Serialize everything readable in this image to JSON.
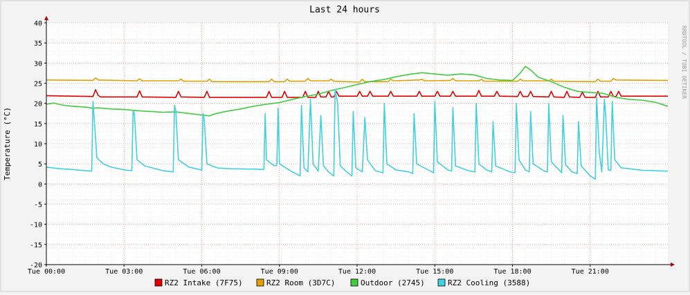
{
  "chart_data": {
    "type": "line",
    "title": "Last 24 hours",
    "ylabel": "Temperature (°C)",
    "watermark": "RRDTOOL / TOBI OETIKER",
    "ylim": [
      -20,
      40
    ],
    "y_ticks": [
      40,
      35,
      30,
      25,
      20,
      15,
      10,
      5,
      0,
      -5,
      -10,
      -15,
      -20
    ],
    "xlim_hours": [
      0,
      24
    ],
    "x_ticks": [
      {
        "h": 0,
        "label": "Tue 00:00"
      },
      {
        "h": 3,
        "label": "Tue 03:00"
      },
      {
        "h": 6,
        "label": "Tue 06:00"
      },
      {
        "h": 9,
        "label": "Tue 09:00"
      },
      {
        "h": 12,
        "label": "Tue 12:00"
      },
      {
        "h": 15,
        "label": "Tue 15:00"
      },
      {
        "h": 18,
        "label": "Tue 18:00"
      },
      {
        "h": 21,
        "label": "Tue 21:00"
      }
    ],
    "grid": true,
    "legend_position": "bottom",
    "series": [
      {
        "name": "RZ2 Intake (7F75)",
        "color": "#e00000",
        "points": [
          [
            0,
            21.9
          ],
          [
            1.8,
            21.7
          ],
          [
            1.9,
            23.4
          ],
          [
            2.0,
            22.0
          ],
          [
            2.1,
            21.6
          ],
          [
            3.5,
            21.6
          ],
          [
            3.6,
            23.1
          ],
          [
            3.7,
            21.6
          ],
          [
            5.0,
            21.5
          ],
          [
            5.1,
            23.0
          ],
          [
            5.2,
            21.6
          ],
          [
            6.1,
            21.5
          ],
          [
            6.2,
            23.0
          ],
          [
            6.3,
            21.5
          ],
          [
            8.5,
            21.5
          ],
          [
            8.6,
            23.0
          ],
          [
            8.7,
            21.5
          ],
          [
            9.1,
            21.5
          ],
          [
            9.2,
            23.0
          ],
          [
            9.3,
            21.5
          ],
          [
            9.9,
            21.5
          ],
          [
            10.0,
            23.0
          ],
          [
            10.1,
            21.5
          ],
          [
            10.4,
            21.5
          ],
          [
            10.5,
            23.0
          ],
          [
            10.6,
            21.6
          ],
          [
            10.8,
            21.6
          ],
          [
            10.9,
            23.0
          ],
          [
            11.0,
            21.6
          ],
          [
            11.1,
            21.6
          ],
          [
            11.2,
            23.0
          ],
          [
            11.3,
            21.8
          ],
          [
            12.0,
            21.8
          ],
          [
            12.1,
            23.0
          ],
          [
            12.2,
            21.8
          ],
          [
            12.4,
            21.8
          ],
          [
            12.5,
            23.0
          ],
          [
            12.6,
            21.8
          ],
          [
            13.2,
            21.8
          ],
          [
            13.3,
            23.0
          ],
          [
            13.4,
            21.8
          ],
          [
            14.3,
            21.8
          ],
          [
            14.4,
            23.0
          ],
          [
            14.5,
            21.8
          ],
          [
            15.0,
            21.8
          ],
          [
            15.1,
            23.0
          ],
          [
            15.2,
            21.8
          ],
          [
            15.6,
            21.8
          ],
          [
            15.7,
            23.0
          ],
          [
            15.8,
            21.8
          ],
          [
            16.6,
            21.8
          ],
          [
            16.7,
            23.2
          ],
          [
            16.8,
            21.8
          ],
          [
            17.3,
            21.8
          ],
          [
            17.4,
            23.0
          ],
          [
            17.5,
            21.8
          ],
          [
            18.2,
            21.7
          ],
          [
            18.3,
            23.0
          ],
          [
            18.4,
            21.7
          ],
          [
            18.6,
            21.7
          ],
          [
            18.7,
            23.0
          ],
          [
            18.8,
            21.7
          ],
          [
            19.4,
            21.6
          ],
          [
            19.5,
            23.0
          ],
          [
            19.6,
            21.6
          ],
          [
            20.0,
            21.5
          ],
          [
            20.1,
            23.0
          ],
          [
            20.2,
            21.6
          ],
          [
            20.6,
            21.5
          ],
          [
            20.7,
            22.8
          ],
          [
            20.8,
            21.5
          ],
          [
            21.2,
            21.5
          ],
          [
            21.3,
            23.0
          ],
          [
            21.4,
            21.6
          ],
          [
            21.7,
            21.6
          ],
          [
            21.8,
            23.0
          ],
          [
            21.9,
            21.7
          ],
          [
            22.0,
            21.7
          ],
          [
            22.1,
            23.0
          ],
          [
            22.2,
            21.8
          ],
          [
            24.0,
            21.8
          ]
        ]
      },
      {
        "name": "RZ2 Room (3D7C)",
        "color": "#e0a000",
        "points": [
          [
            0,
            25.8
          ],
          [
            1.8,
            25.7
          ],
          [
            1.9,
            26.3
          ],
          [
            2.0,
            25.8
          ],
          [
            3.5,
            25.6
          ],
          [
            3.6,
            26.1
          ],
          [
            3.7,
            25.6
          ],
          [
            5.1,
            25.6
          ],
          [
            5.2,
            26.0
          ],
          [
            5.3,
            25.5
          ],
          [
            6.2,
            25.5
          ],
          [
            6.3,
            26.0
          ],
          [
            6.4,
            25.4
          ],
          [
            8.6,
            25.4
          ],
          [
            8.7,
            26.0
          ],
          [
            8.8,
            25.4
          ],
          [
            9.2,
            25.4
          ],
          [
            9.3,
            26.0
          ],
          [
            9.4,
            25.5
          ],
          [
            10.0,
            25.5
          ],
          [
            10.1,
            26.2
          ],
          [
            10.2,
            25.6
          ],
          [
            10.9,
            25.6
          ],
          [
            11.0,
            26.0
          ],
          [
            11.1,
            25.5
          ],
          [
            12.1,
            25.3
          ],
          [
            12.2,
            26.0
          ],
          [
            12.3,
            25.4
          ],
          [
            13.2,
            25.4
          ],
          [
            13.3,
            26.0
          ],
          [
            13.4,
            25.6
          ],
          [
            14.4,
            25.8
          ],
          [
            14.5,
            26.0
          ],
          [
            14.6,
            25.6
          ],
          [
            15.6,
            25.7
          ],
          [
            15.7,
            26.2
          ],
          [
            15.8,
            25.6
          ],
          [
            16.7,
            25.6
          ],
          [
            16.8,
            26.0
          ],
          [
            16.9,
            25.5
          ],
          [
            18.2,
            25.5
          ],
          [
            18.3,
            26.0
          ],
          [
            18.4,
            25.6
          ],
          [
            19.4,
            25.6
          ],
          [
            19.5,
            26.0
          ],
          [
            19.6,
            25.5
          ],
          [
            21.2,
            25.4
          ],
          [
            21.3,
            26.0
          ],
          [
            21.4,
            25.5
          ],
          [
            21.8,
            25.5
          ],
          [
            21.9,
            26.2
          ],
          [
            22.0,
            25.8
          ],
          [
            24.0,
            25.7
          ]
        ]
      },
      {
        "name": "Outdoor (2745)",
        "color": "#40cc40",
        "points": [
          [
            0,
            19.8
          ],
          [
            0.3,
            20.1
          ],
          [
            0.6,
            19.6
          ],
          [
            1.0,
            19.3
          ],
          [
            1.5,
            19.1
          ],
          [
            1.8,
            18.8
          ],
          [
            2.0,
            18.9
          ],
          [
            2.5,
            18.6
          ],
          [
            3.0,
            18.5
          ],
          [
            3.5,
            18.2
          ],
          [
            4.0,
            18.0
          ],
          [
            4.5,
            17.8
          ],
          [
            5.0,
            17.9
          ],
          [
            5.5,
            17.5
          ],
          [
            5.9,
            17.2
          ],
          [
            6.3,
            16.9
          ],
          [
            6.5,
            17.4
          ],
          [
            7.0,
            18.1
          ],
          [
            7.5,
            18.6
          ],
          [
            8.0,
            19.3
          ],
          [
            8.5,
            19.8
          ],
          [
            9.0,
            20.2
          ],
          [
            9.5,
            21.0
          ],
          [
            10.0,
            21.7
          ],
          [
            10.5,
            22.3
          ],
          [
            11.0,
            23.2
          ],
          [
            11.5,
            23.9
          ],
          [
            12.0,
            24.7
          ],
          [
            12.5,
            25.4
          ],
          [
            13.0,
            25.9
          ],
          [
            13.5,
            26.6
          ],
          [
            14.0,
            27.2
          ],
          [
            14.5,
            27.6
          ],
          [
            15.0,
            27.3
          ],
          [
            15.5,
            27.0
          ],
          [
            16.0,
            27.3
          ],
          [
            16.5,
            27.1
          ],
          [
            17.0,
            26.2
          ],
          [
            17.5,
            25.8
          ],
          [
            18.0,
            25.7
          ],
          [
            18.3,
            27.5
          ],
          [
            18.5,
            29.2
          ],
          [
            18.7,
            28.3
          ],
          [
            19.0,
            26.5
          ],
          [
            19.5,
            25.4
          ],
          [
            20.0,
            24.0
          ],
          [
            20.5,
            23.0
          ],
          [
            21.0,
            22.7
          ],
          [
            21.5,
            22.5
          ],
          [
            22.0,
            21.5
          ],
          [
            22.5,
            21.0
          ],
          [
            23.0,
            20.8
          ],
          [
            23.5,
            20.3
          ],
          [
            24.0,
            19.3
          ]
        ]
      },
      {
        "name": "RZ2 Cooling (3588)",
        "color": "#40d0e0",
        "points": [
          [
            0,
            4.2
          ],
          [
            0.5,
            3.8
          ],
          [
            1.0,
            3.6
          ],
          [
            1.5,
            3.3
          ],
          [
            1.75,
            3.2
          ],
          [
            1.8,
            20.5
          ],
          [
            1.85,
            16.0
          ],
          [
            1.95,
            6.5
          ],
          [
            2.2,
            5.0
          ],
          [
            2.5,
            4.2
          ],
          [
            3.0,
            3.5
          ],
          [
            3.3,
            3.3
          ],
          [
            3.35,
            18.0
          ],
          [
            3.4,
            17.5
          ],
          [
            3.5,
            6.0
          ],
          [
            3.8,
            4.5
          ],
          [
            4.5,
            3.3
          ],
          [
            4.9,
            3.0
          ],
          [
            4.95,
            19.5
          ],
          [
            5.0,
            18.0
          ],
          [
            5.1,
            6.0
          ],
          [
            5.5,
            4.2
          ],
          [
            5.9,
            3.6
          ],
          [
            6.0,
            3.4
          ],
          [
            6.05,
            17.5
          ],
          [
            6.1,
            16.0
          ],
          [
            6.2,
            5.0
          ],
          [
            6.6,
            4.0
          ],
          [
            7.0,
            3.8
          ],
          [
            8.0,
            3.7
          ],
          [
            8.4,
            3.6
          ],
          [
            8.45,
            17.5
          ],
          [
            8.5,
            6.0
          ],
          [
            8.8,
            4.5
          ],
          [
            8.9,
            4.6
          ],
          [
            8.95,
            18.8
          ],
          [
            9.0,
            5.0
          ],
          [
            9.5,
            3.0
          ],
          [
            9.8,
            2.0
          ],
          [
            9.85,
            19.5
          ],
          [
            9.95,
            4.0
          ],
          [
            10.1,
            3.0
          ],
          [
            10.2,
            21.0
          ],
          [
            10.3,
            5.0
          ],
          [
            10.5,
            3.2
          ],
          [
            10.6,
            17.0
          ],
          [
            10.7,
            4.5
          ],
          [
            10.9,
            3.0
          ],
          [
            11.1,
            2.0
          ],
          [
            11.15,
            23.5
          ],
          [
            11.25,
            20.0
          ],
          [
            11.35,
            4.5
          ],
          [
            11.6,
            3.0
          ],
          [
            11.8,
            2.0
          ],
          [
            11.85,
            18.0
          ],
          [
            11.95,
            4.0
          ],
          [
            12.2,
            3.0
          ],
          [
            12.3,
            16.5
          ],
          [
            12.4,
            6.0
          ],
          [
            12.7,
            3.3
          ],
          [
            13.0,
            2.8
          ],
          [
            13.05,
            20.0
          ],
          [
            13.15,
            5.0
          ],
          [
            13.5,
            3.5
          ],
          [
            14.0,
            3.0
          ],
          [
            14.15,
            2.6
          ],
          [
            14.2,
            17.5
          ],
          [
            14.3,
            5.0
          ],
          [
            14.8,
            3.3
          ],
          [
            14.95,
            2.8
          ],
          [
            15.0,
            20.5
          ],
          [
            15.1,
            5.5
          ],
          [
            15.5,
            3.5
          ],
          [
            15.65,
            3.2
          ],
          [
            15.7,
            19.0
          ],
          [
            15.8,
            4.5
          ],
          [
            16.3,
            3.3
          ],
          [
            16.55,
            3.0
          ],
          [
            16.6,
            20.0
          ],
          [
            16.7,
            5.0
          ],
          [
            17.0,
            3.5
          ],
          [
            17.2,
            3.0
          ],
          [
            17.25,
            15.5
          ],
          [
            17.35,
            4.5
          ],
          [
            17.9,
            3.0
          ],
          [
            18.1,
            2.8
          ],
          [
            18.15,
            20.0
          ],
          [
            18.25,
            6.0
          ],
          [
            18.5,
            3.5
          ],
          [
            18.65,
            3.0
          ],
          [
            18.7,
            18.0
          ],
          [
            18.8,
            5.0
          ],
          [
            19.2,
            3.3
          ],
          [
            19.35,
            3.0
          ],
          [
            19.4,
            20.0
          ],
          [
            19.5,
            5.5
          ],
          [
            19.9,
            2.8
          ],
          [
            19.95,
            17.0
          ],
          [
            20.05,
            4.8
          ],
          [
            20.3,
            3.0
          ],
          [
            20.5,
            2.6
          ],
          [
            20.55,
            15.5
          ],
          [
            20.65,
            4.5
          ],
          [
            21.0,
            2.0
          ],
          [
            21.2,
            1.2
          ],
          [
            21.25,
            21.5
          ],
          [
            21.35,
            8.0
          ],
          [
            21.45,
            3.0
          ],
          [
            21.55,
            21.0
          ],
          [
            21.6,
            17.0
          ],
          [
            21.7,
            3.5
          ],
          [
            21.8,
            3.4
          ],
          [
            21.85,
            20.5
          ],
          [
            21.95,
            6.0
          ],
          [
            22.2,
            4.0
          ],
          [
            22.5,
            3.8
          ],
          [
            23.0,
            3.4
          ],
          [
            23.5,
            3.3
          ],
          [
            24.0,
            3.2
          ]
        ]
      }
    ]
  }
}
